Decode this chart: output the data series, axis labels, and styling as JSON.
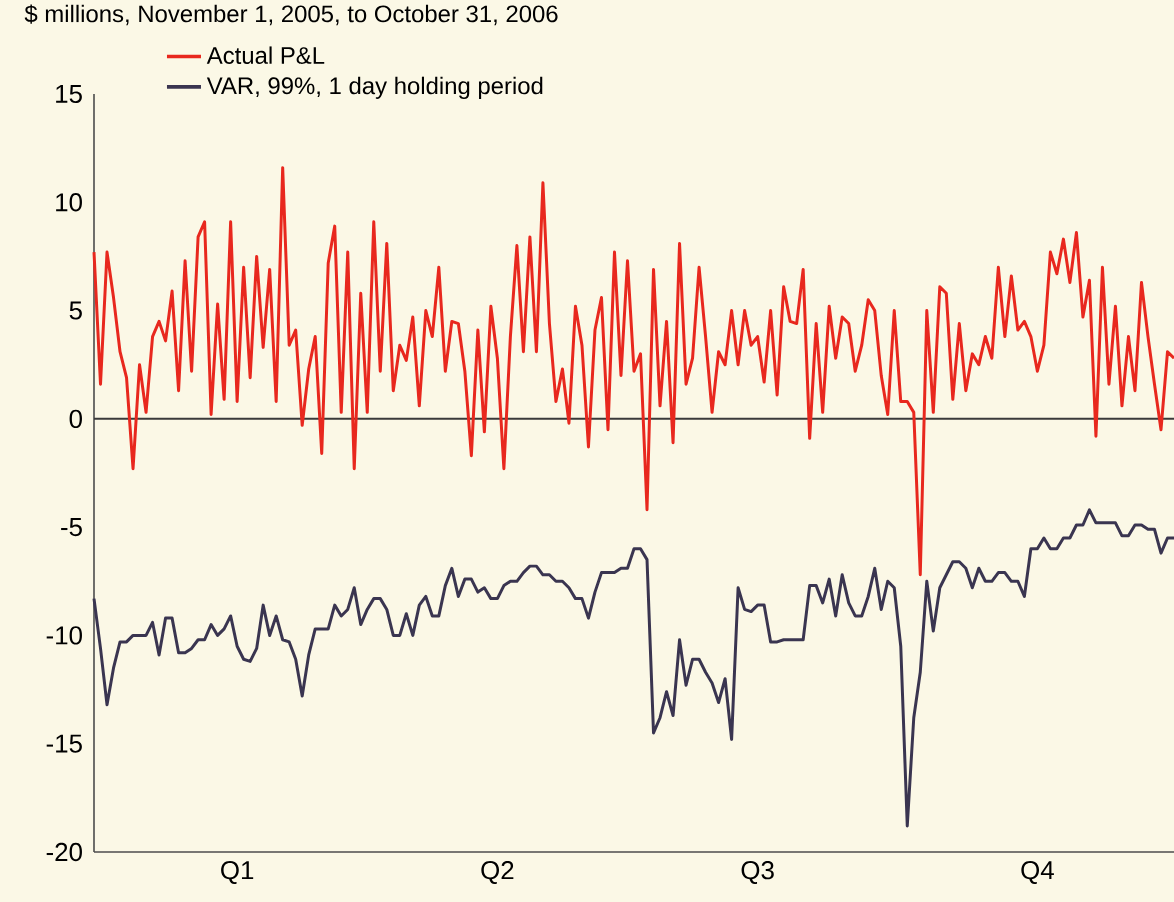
{
  "chart_data": {
    "type": "line",
    "title": "$ millions, November 1, 2005, to October 31, 2006",
    "categories": [
      null,
      null,
      null,
      null,
      null,
      null,
      null,
      null,
      null,
      null,
      null,
      null,
      null,
      null,
      null,
      null,
      null,
      null,
      null,
      null,
      null,
      null,
      "Q1",
      null,
      null,
      null,
      null,
      null,
      null,
      null,
      null,
      null,
      null,
      null,
      null,
      null,
      null,
      null,
      null,
      null,
      null,
      null,
      null,
      null,
      null,
      null,
      null,
      null,
      null,
      null,
      null,
      null,
      null,
      null,
      null,
      null,
      null,
      null,
      null,
      null,
      null,
      null,
      "Q2",
      null,
      null,
      null,
      null,
      null,
      null,
      null,
      null,
      null,
      null,
      null,
      null,
      null,
      null,
      null,
      null,
      null,
      null,
      null,
      null,
      null,
      null,
      null,
      null,
      null,
      null,
      null,
      null,
      null,
      null,
      null,
      null,
      null,
      null,
      null,
      null,
      null,
      null,
      null,
      "Q3",
      null,
      null,
      null,
      null,
      null,
      null,
      null,
      null,
      null,
      null,
      null,
      null,
      null,
      null,
      null,
      null,
      null,
      null,
      null,
      null,
      null,
      null,
      null,
      null,
      null,
      null,
      null,
      null,
      null,
      null,
      null,
      null,
      null,
      null,
      null,
      null,
      null,
      null,
      null,
      null,
      null,
      null,
      "Q4",
      null,
      null,
      null,
      null,
      null,
      null,
      null,
      null,
      null,
      null,
      null,
      null,
      null,
      null,
      null,
      null,
      null,
      null,
      null,
      null,
      null
    ],
    "ylim": [
      -20,
      15
    ],
    "yticks": [
      -20,
      -15,
      -10,
      -5,
      0,
      5,
      10,
      15
    ],
    "grid": false,
    "legend": "top left",
    "line_style": "solid",
    "ref_lines": [
      {
        "axis": "y",
        "value": 0,
        "color": "#3a3a3a"
      }
    ],
    "series": [
      {
        "name": "Actual P&L",
        "color": "#e8281e",
        "values": [
          7.7,
          1.6,
          7.7,
          5.6,
          3.1,
          1.9,
          -2.3,
          2.5,
          0.3,
          3.8,
          4.5,
          3.6,
          5.9,
          1.3,
          7.3,
          2.2,
          8.4,
          9.1,
          0.2,
          5.3,
          0.9,
          9.1,
          0.8,
          7.0,
          1.9,
          7.5,
          3.3,
          6.9,
          0.8,
          11.6,
          3.4,
          4.1,
          -0.3,
          2.3,
          3.8,
          -1.6,
          7.2,
          8.9,
          0.3,
          7.7,
          -2.3,
          5.8,
          0.3,
          9.1,
          2.2,
          8.1,
          1.3,
          3.4,
          2.7,
          4.7,
          0.6,
          5.0,
          3.8,
          7.0,
          2.2,
          4.5,
          4.4,
          2.2,
          -1.7,
          4.1,
          -0.6,
          5.2,
          2.8,
          -2.3,
          3.8,
          8.0,
          3.1,
          8.4,
          3.1,
          10.9,
          4.4,
          0.8,
          2.3,
          -0.2,
          5.2,
          3.4,
          -1.3,
          4.1,
          5.6,
          -0.5,
          7.7,
          2.0,
          7.3,
          2.2,
          3.0,
          -4.2,
          6.9,
          0.6,
          4.5,
          -1.1,
          8.1,
          1.6,
          2.8,
          7.0,
          3.8,
          0.3,
          3.1,
          2.5,
          5.0,
          2.5,
          5.0,
          3.4,
          3.8,
          1.7,
          5.0,
          1.1,
          6.1,
          4.5,
          4.4,
          6.9,
          -0.9,
          4.4,
          0.3,
          5.2,
          2.8,
          4.7,
          4.4,
          2.2,
          3.4,
          5.5,
          5.0,
          2.0,
          0.2,
          5.0,
          0.8,
          0.8,
          0.3,
          -7.2,
          5.0,
          0.3,
          6.1,
          5.8,
          0.9,
          4.4,
          1.3,
          3.0,
          2.5,
          3.8,
          2.8,
          7.0,
          3.8,
          6.6,
          4.1,
          4.5,
          3.8,
          2.2,
          3.4,
          7.7,
          6.7,
          8.3,
          6.3,
          8.6,
          4.7,
          6.4,
          -0.8,
          7.0,
          1.6,
          5.2,
          0.6,
          3.8,
          1.3,
          6.3,
          3.8,
          1.6,
          -0.5,
          3.1,
          2.8
        ]
      },
      {
        "name": "VAR, 99%, 1 day holding period",
        "color": "#3a3550",
        "values": [
          -8.3,
          -10.6,
          -13.2,
          -11.5,
          -10.3,
          -10.3,
          -10.0,
          -10.0,
          -10.0,
          -9.4,
          -10.9,
          -9.2,
          -9.2,
          -10.8,
          -10.8,
          -10.6,
          -10.2,
          -10.2,
          -9.5,
          -10.0,
          -9.7,
          -9.1,
          -10.5,
          -11.1,
          -11.2,
          -10.6,
          -8.6,
          -10.0,
          -9.1,
          -10.2,
          -10.3,
          -11.1,
          -12.8,
          -10.9,
          -9.7,
          -9.7,
          -9.7,
          -8.6,
          -9.1,
          -8.8,
          -7.8,
          -9.5,
          -8.8,
          -8.3,
          -8.3,
          -8.8,
          -10.0,
          -10.0,
          -9.0,
          -10.0,
          -8.6,
          -8.2,
          -9.1,
          -9.1,
          -7.7,
          -6.9,
          -8.2,
          -7.4,
          -7.4,
          -8.0,
          -7.8,
          -8.3,
          -8.3,
          -7.7,
          -7.5,
          -7.5,
          -7.1,
          -6.8,
          -6.8,
          -7.2,
          -7.2,
          -7.5,
          -7.5,
          -7.8,
          -8.3,
          -8.3,
          -9.2,
          -8.0,
          -7.1,
          -7.1,
          -7.1,
          -6.9,
          -6.9,
          -6.0,
          -6.0,
          -6.5,
          -14.5,
          -13.8,
          -12.6,
          -13.7,
          -10.2,
          -12.3,
          -11.1,
          -11.1,
          -11.7,
          -12.2,
          -13.1,
          -12.0,
          -14.8,
          -7.8,
          -8.8,
          -8.9,
          -8.6,
          -8.6,
          -10.3,
          -10.3,
          -10.2,
          -10.2,
          -10.2,
          -10.2,
          -7.7,
          -7.7,
          -8.5,
          -7.4,
          -9.1,
          -7.2,
          -8.5,
          -9.1,
          -9.1,
          -8.2,
          -6.9,
          -8.8,
          -7.5,
          -7.8,
          -10.5,
          -18.8,
          -13.8,
          -11.7,
          -7.5,
          -9.8,
          -7.8,
          -7.2,
          -6.6,
          -6.6,
          -6.9,
          -7.8,
          -6.9,
          -7.5,
          -7.5,
          -7.1,
          -7.1,
          -7.5,
          -7.5,
          -8.2,
          -6.0,
          -6.0,
          -5.5,
          -6.0,
          -6.0,
          -5.5,
          -5.5,
          -4.9,
          -4.9,
          -4.2,
          -4.8,
          -4.8,
          -4.8,
          -4.8,
          -5.4,
          -5.4,
          -4.9,
          -4.9,
          -5.1,
          -5.1,
          -6.2,
          -5.5,
          -5.5
        ]
      }
    ]
  }
}
